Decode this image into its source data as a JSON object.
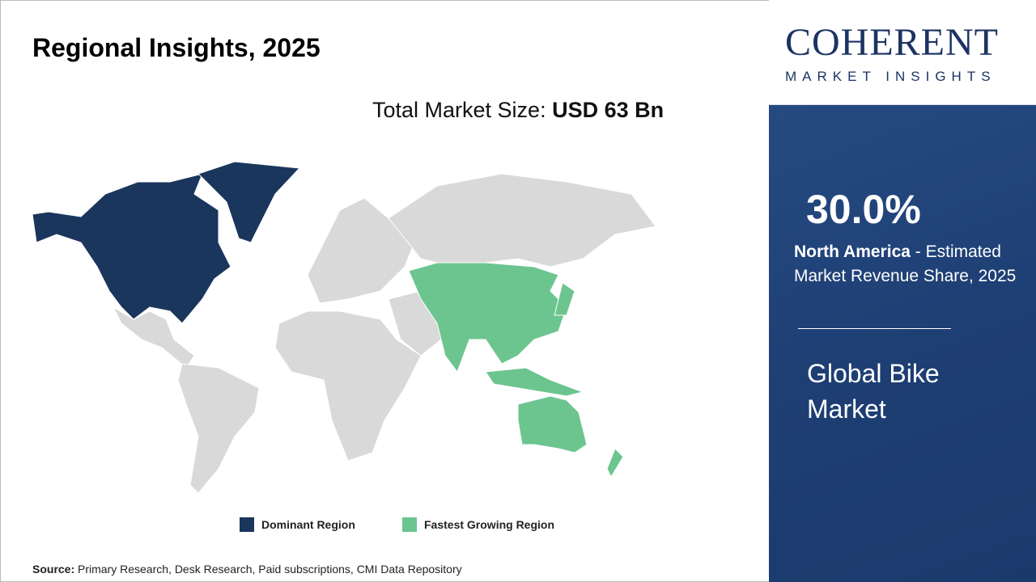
{
  "title": "Regional Insights, 2025",
  "total_market": {
    "label": "Total Market Size:",
    "value": "USD 63 Bn"
  },
  "legend": [
    {
      "label": "Dominant Region",
      "color": "#1b365d"
    },
    {
      "label": "Fastest Growing Region",
      "color": "#6cc58f"
    }
  ],
  "map": {
    "dominant_region": "North America",
    "fastest_growing_region": "Asia Pacific",
    "other_color": "#d9d9d9"
  },
  "source": {
    "label": "Source:",
    "text": " Primary Research, Desk Research, Paid subscriptions, CMI Data Repository"
  },
  "logo": {
    "main": "COHERENT",
    "sub": "MARKET INSIGHTS"
  },
  "panel": {
    "share": "30.0%",
    "region": "North America",
    "desc": " - Estimated Market Revenue Share, 2025",
    "market": "Global Bike Market"
  }
}
